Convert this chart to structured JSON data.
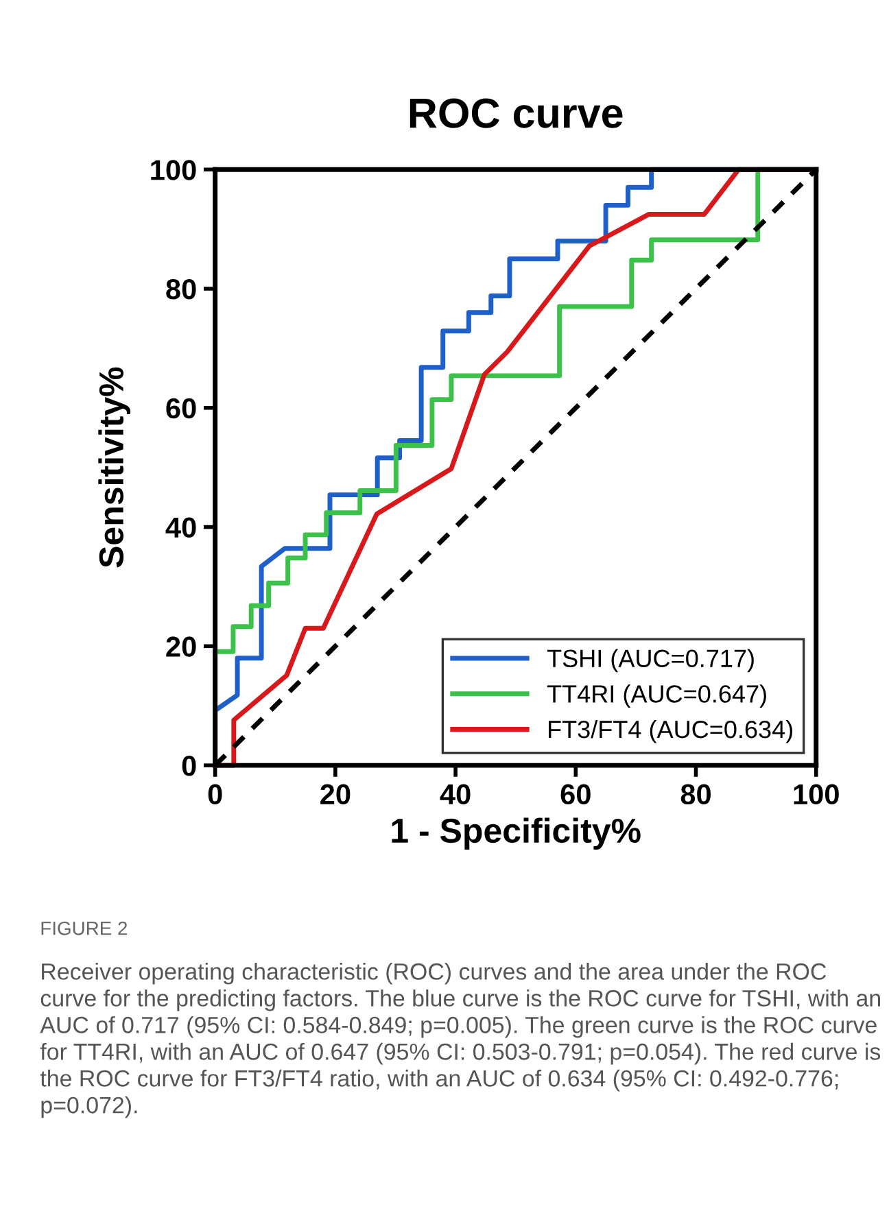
{
  "chart_data": {
    "type": "line",
    "title": "ROC curve",
    "xlabel": "1 - Specificity%",
    "ylabel": "Sensitivity%",
    "xlim": [
      0,
      100
    ],
    "ylim": [
      0,
      100
    ],
    "xticks": [
      0,
      20,
      40,
      60,
      80,
      100
    ],
    "yticks": [
      0,
      20,
      40,
      60,
      80,
      100
    ],
    "grid": false,
    "legend": "bottom right",
    "marker": "none",
    "series": [
      {
        "name": "TSHI (AUC=0.717)",
        "color": "#1f5fc8",
        "x": [
          0,
          0,
          3.7,
          3.7,
          7.7,
          7.7,
          11.6,
          19.1,
          19.1,
          27,
          27,
          30.7,
          30.7,
          34.3,
          34.3,
          37.9,
          37.9,
          42.2,
          42.2,
          45.9,
          45.9,
          49,
          49,
          57,
          57,
          65,
          65,
          68.7,
          68.7,
          72.6,
          72.6,
          100
        ],
        "values": [
          0,
          9.2,
          11.8,
          18,
          18,
          33.4,
          36.4,
          36.4,
          45.4,
          45.4,
          51.6,
          51.6,
          54.5,
          54.5,
          66.8,
          66.8,
          72.9,
          72.9,
          76,
          76,
          78.8,
          78.8,
          85,
          85,
          88,
          88,
          94,
          94,
          97,
          97,
          100,
          100
        ]
      },
      {
        "name": "TT4RI (AUC=0.647)",
        "color": "#3cc24a",
        "x": [
          0,
          0,
          3,
          3,
          6,
          6,
          8.9,
          8.9,
          12.1,
          12.1,
          15,
          15,
          18.5,
          18.5,
          24.1,
          24.1,
          30.1,
          30.1,
          36.1,
          36.1,
          39.3,
          39.3,
          57.3,
          57.3,
          69.3,
          69.3,
          72.6,
          72.6,
          90.3,
          90.3,
          100
        ],
        "values": [
          0,
          19.1,
          19.1,
          23.3,
          23.3,
          26.8,
          26.8,
          30.6,
          30.6,
          34.8,
          34.8,
          38.7,
          38.7,
          42.4,
          42.4,
          46.1,
          46.1,
          53.7,
          53.7,
          61.4,
          61.4,
          65.4,
          65.4,
          77,
          77,
          84.8,
          84.8,
          88.2,
          88.2,
          100,
          100
        ]
      },
      {
        "name": "FT3/FT4 (AUC=0.634)",
        "color": "#d7191c",
        "x": [
          0,
          3.1,
          3.1,
          11.9,
          15,
          18,
          26.9,
          39.3,
          44.8,
          48.6,
          62.3,
          72.2,
          81.4,
          87.1,
          100
        ],
        "values": [
          0,
          0,
          7.6,
          15.1,
          23,
          23,
          42.2,
          49.8,
          65.6,
          69.4,
          87.2,
          92.5,
          92.5,
          100,
          100
        ]
      },
      {
        "color": "#000000",
        "line_style": "dashed",
        "x": [
          0,
          100
        ],
        "values": [
          0,
          100
        ]
      }
    ],
    "annotations": [
      "FIGURE 2",
      "Receiver operating characteristic (ROC) curves and the area under the ROC curve for the predicting factors. The blue curve is the ROC curve for TSHI, with an AUC of 0.717 (95% CI: 0.584-0.849; p=0.005). The green curve is the ROC curve for TT4RI, with an AUC of 0.647 (95% CI: 0.503-0.791; p=0.054). The red curve is the ROC curve for FT3/FT4 ratio, with an AUC of 0.634 (95% CI: 0.492-0.776; p=0.072)."
    ]
  }
}
